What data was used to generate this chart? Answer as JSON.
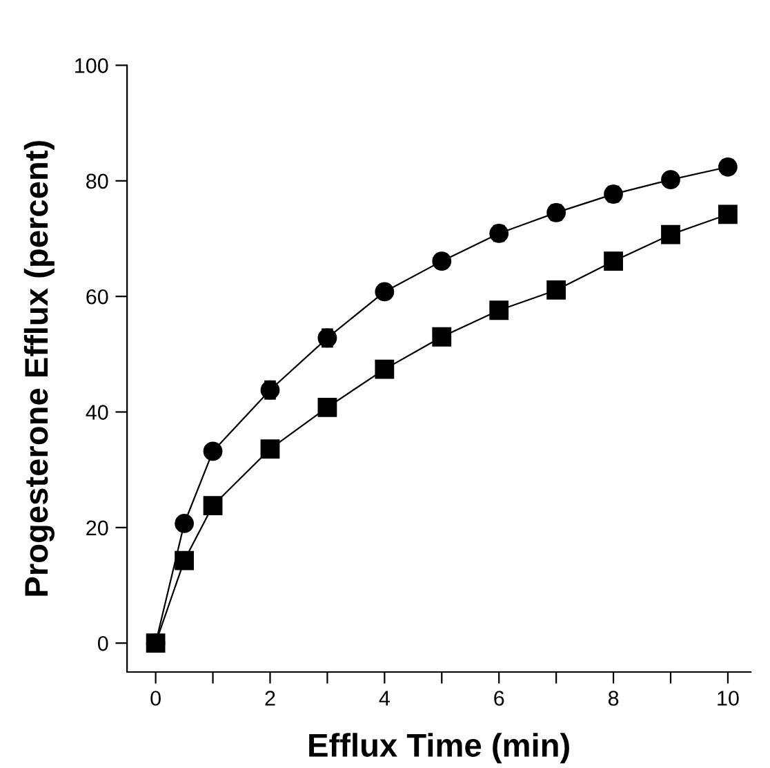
{
  "chart_data": {
    "type": "line",
    "xlabel": "Efflux Time (min)",
    "ylabel": "Progesterone Efflux (percent)",
    "x": [
      0,
      0.5,
      1,
      2,
      3,
      4,
      5,
      6,
      7,
      8,
      9,
      10
    ],
    "series": [
      {
        "color": "#000000",
        "marker": "circle",
        "values": [
          0,
          20.7,
          33.2,
          43.8,
          52.8,
          60.8,
          66.1,
          70.9,
          74.5,
          77.7,
          80.2,
          82.4
        ],
        "errors": [
          null,
          0.8,
          1,
          1.5,
          1.5,
          1.2,
          1.2,
          1.3,
          1.3,
          1.3,
          1.1,
          1.2
        ]
      },
      {
        "color": "#000000",
        "marker": "square",
        "values": [
          0,
          14.3,
          23.8,
          33.6,
          40.8,
          47.4,
          53.0,
          57.6,
          61.1,
          66.1,
          70.7,
          74.2
        ]
      }
    ],
    "xlim": [
      -0.5,
      10.4
    ],
    "ylim": [
      -5,
      100
    ],
    "xticks": [
      0,
      {
        "value": 1,
        "label": null
      },
      2,
      {
        "value": 3,
        "label": null
      },
      4,
      {
        "value": 5,
        "label": null
      },
      6,
      {
        "value": 7,
        "label": null
      },
      8,
      {
        "value": 9,
        "label": null
      },
      10
    ],
    "yticks": [
      0,
      20,
      40,
      60,
      80,
      100
    ],
    "grid": false,
    "legend": false,
    "line_style": "solid"
  }
}
